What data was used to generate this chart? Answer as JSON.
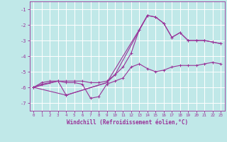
{
  "title": "",
  "xlabel": "Windchill (Refroidissement éolien,°C)",
  "ylabel": "",
  "bg_color": "#c0e8e8",
  "line_color": "#993399",
  "grid_color": "#ffffff",
  "xlim": [
    -0.5,
    23.5
  ],
  "ylim": [
    -7.5,
    -0.5
  ],
  "xticks": [
    0,
    1,
    2,
    3,
    4,
    5,
    6,
    7,
    8,
    9,
    10,
    11,
    12,
    13,
    14,
    15,
    16,
    17,
    18,
    19,
    20,
    21,
    22,
    23
  ],
  "yticks": [
    -7,
    -6,
    -5,
    -4,
    -3,
    -2,
    -1
  ],
  "series1_x": [
    0,
    1,
    2,
    3,
    4,
    5,
    6,
    7,
    8,
    9,
    10,
    11,
    12,
    13,
    14,
    15,
    16,
    17,
    18,
    19,
    20,
    21,
    22,
    23
  ],
  "series1_y": [
    -6.0,
    -5.8,
    -5.7,
    -5.6,
    -5.7,
    -5.7,
    -5.8,
    -6.7,
    -6.6,
    -5.8,
    -5.6,
    -5.4,
    -4.7,
    -4.5,
    -4.8,
    -5.0,
    -4.9,
    -4.7,
    -4.6,
    -4.6,
    -4.6,
    -4.5,
    -4.4,
    -4.5
  ],
  "series2_x": [
    0,
    1,
    2,
    3,
    4,
    5,
    6,
    7,
    8,
    9,
    10,
    11,
    12,
    13,
    14,
    15,
    16,
    17,
    18,
    19,
    20,
    21,
    22,
    23
  ],
  "series2_y": [
    -6.0,
    -5.7,
    -5.6,
    -5.6,
    -5.6,
    -5.6,
    -5.6,
    -5.7,
    -5.7,
    -5.6,
    -5.2,
    -4.7,
    -3.8,
    -2.3,
    -1.4,
    -1.5,
    -1.9,
    -2.8,
    -2.5,
    -3.0,
    -3.0,
    -3.0,
    -3.1,
    -3.2
  ],
  "series3_x": [
    0,
    4,
    9,
    13,
    14,
    15,
    16,
    17,
    18,
    19,
    20,
    21,
    22,
    23
  ],
  "series3_y": [
    -6.0,
    -6.5,
    -5.7,
    -2.3,
    -1.4,
    -1.5,
    -1.9,
    -2.8,
    -2.5,
    -3.0,
    -3.0,
    -3.0,
    -3.1,
    -3.2
  ],
  "series4_x": [
    0,
    3,
    4,
    9,
    10,
    14
  ],
  "series4_y": [
    -6.0,
    -5.6,
    -6.5,
    -5.7,
    -5.2,
    -1.4
  ],
  "marker_size": 2.5,
  "line_width": 0.8
}
